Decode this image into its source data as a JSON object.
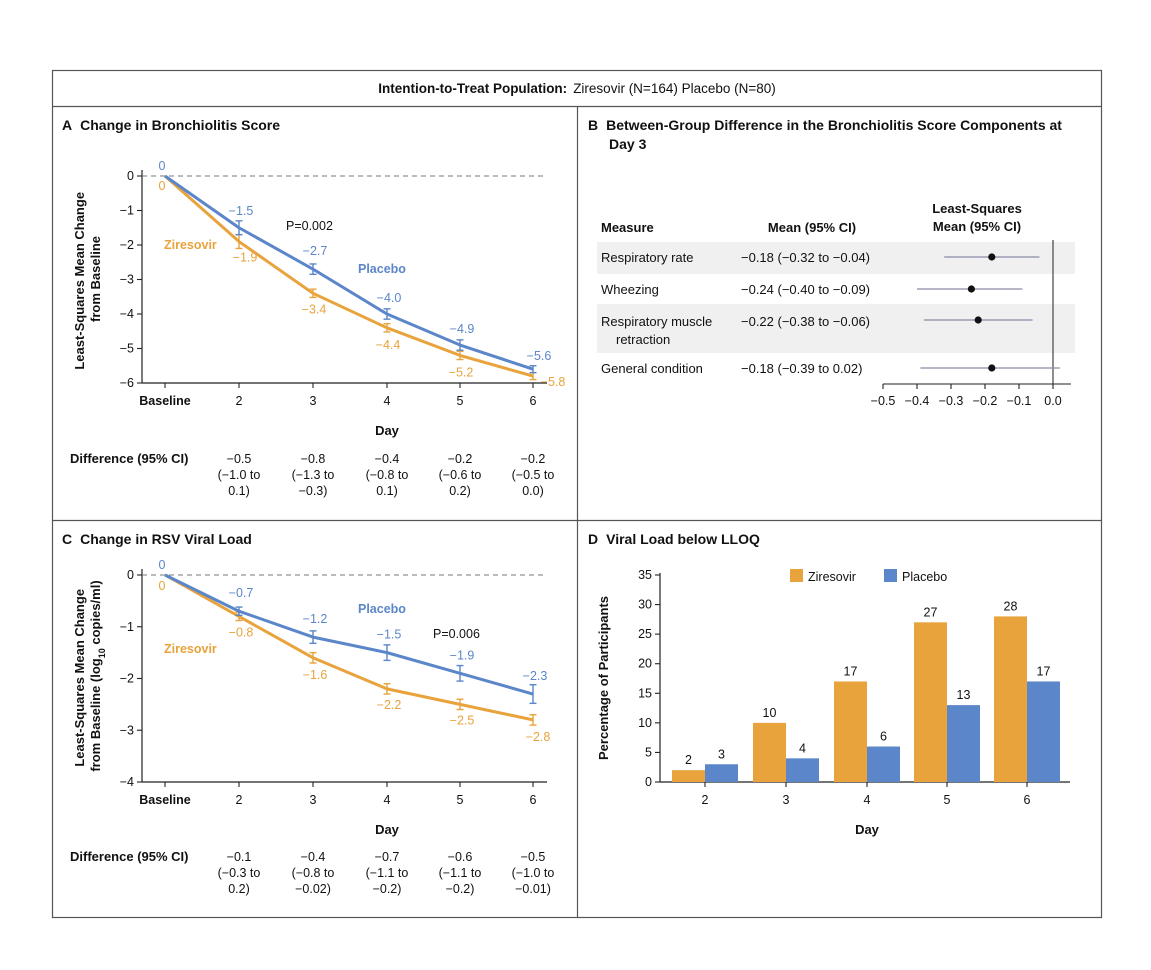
{
  "header": {
    "prefix": "Intention-to-Treat Population:",
    "groups": "Ziresovir (N=164)  Placebo (N=80)"
  },
  "colors": {
    "ziresovir": "#E8A33C",
    "placebo": "#5B86C9",
    "grid": "#888888",
    "row_shade": "#F0F0F0"
  },
  "chart_data": [
    {
      "panel": "A",
      "type": "line",
      "title": "Change in Bronchiolitis Score",
      "ylabel": "Least-Squares Mean Change from Baseline",
      "xlabel": "Day",
      "categories": [
        "Baseline",
        "2",
        "3",
        "4",
        "5",
        "6"
      ],
      "ylim": [
        -6,
        0
      ],
      "yticks": [
        "0",
        "−1",
        "−2",
        "−3",
        "−4",
        "−5",
        "−6"
      ],
      "series": [
        {
          "name": "Ziresovir",
          "values": [
            0,
            -1.9,
            -3.4,
            -4.4,
            -5.2,
            -5.8
          ],
          "errors": [
            0,
            0.2,
            0.12,
            0.12,
            0.12,
            0.1
          ],
          "labels": [
            "0",
            "−1.9",
            "−3.4",
            "−4.4",
            "−5.2",
            "−5.8"
          ]
        },
        {
          "name": "Placebo",
          "values": [
            0,
            -1.5,
            -2.7,
            -4.0,
            -4.9,
            -5.6
          ],
          "errors": [
            0,
            0.2,
            0.15,
            0.15,
            0.15,
            0.1
          ],
          "labels": [
            "0",
            "−1.5",
            "−2.7",
            "−4.0",
            "−4.9",
            "−5.6"
          ]
        }
      ],
      "annotation": "P=0.002",
      "difference_label": "Difference (95% CI)",
      "differences": [
        [
          "−0.5",
          "(−1.0 to",
          "0.1)"
        ],
        [
          "−0.8",
          "(−1.3 to",
          "−0.3)"
        ],
        [
          "−0.4",
          "(−0.8 to",
          "0.1)"
        ],
        [
          "−0.2",
          "(−0.6 to",
          "0.2)"
        ],
        [
          "−0.2",
          "(−0.5 to",
          "0.0)"
        ]
      ]
    },
    {
      "panel": "B",
      "type": "forest",
      "title_line1": "Between-Group Difference in the Bronchiolitis Score Components at",
      "title_line2": "Day 3",
      "col_measure": "Measure",
      "col_mean": "Mean (95% CI)",
      "col_plot_line1": "Least-Squares",
      "col_plot_line2": "Mean (95% CI)",
      "xlim": [
        -0.5,
        0.0
      ],
      "xticks": [
        "−0.5",
        "−0.4",
        "−0.3",
        "−0.2",
        "−0.1",
        "0.0"
      ],
      "rows": [
        {
          "measure": [
            "Respiratory rate"
          ],
          "mean_ci": "−0.18 (−0.32 to −0.04)",
          "mean": -0.18,
          "lo": -0.32,
          "hi": -0.04
        },
        {
          "measure": [
            "Wheezing"
          ],
          "mean_ci": "−0.24 (−0.40 to −0.09)",
          "mean": -0.24,
          "lo": -0.4,
          "hi": -0.09
        },
        {
          "measure": [
            "Respiratory muscle",
            "retraction"
          ],
          "mean_ci": "−0.22 (−0.38 to −0.06)",
          "mean": -0.22,
          "lo": -0.38,
          "hi": -0.06
        },
        {
          "measure": [
            "General condition"
          ],
          "mean_ci": "−0.18 (−0.39 to 0.02)",
          "mean": -0.18,
          "lo": -0.39,
          "hi": 0.02
        }
      ]
    },
    {
      "panel": "C",
      "type": "line",
      "title": "Change in RSV Viral Load",
      "ylabel_line1": "Least-Squares Mean Change",
      "ylabel_line2_pre": "from Baseline (log",
      "ylabel_line2_sub": "10",
      "ylabel_line2_post": " copies/ml)",
      "xlabel": "Day",
      "categories": [
        "Baseline",
        "2",
        "3",
        "4",
        "5",
        "6"
      ],
      "ylim": [
        -4,
        0
      ],
      "yticks": [
        "0",
        "−1",
        "−2",
        "−3",
        "−4"
      ],
      "series": [
        {
          "name": "Ziresovir",
          "values": [
            0,
            -0.8,
            -1.6,
            -2.2,
            -2.5,
            -2.8
          ],
          "errors": [
            0,
            0.08,
            0.1,
            0.1,
            0.1,
            0.1
          ],
          "labels": [
            "0",
            "−0.8",
            "−1.6",
            "−2.2",
            "−2.5",
            "−2.8"
          ]
        },
        {
          "name": "Placebo",
          "values": [
            0,
            -0.7,
            -1.2,
            -1.5,
            -1.9,
            -2.3
          ],
          "errors": [
            0,
            0.08,
            0.12,
            0.15,
            0.15,
            0.18
          ],
          "labels": [
            "0",
            "−0.7",
            "−1.2",
            "−1.5",
            "−1.9",
            "−2.3"
          ]
        }
      ],
      "annotation": "P=0.006",
      "difference_label": "Difference (95% CI)",
      "differences": [
        [
          "−0.1",
          "(−0.3 to",
          "0.2)"
        ],
        [
          "−0.4",
          "(−0.8 to",
          "−0.02)"
        ],
        [
          "−0.7",
          "(−1.1 to",
          "−0.2)"
        ],
        [
          "−0.6",
          "(−1.1 to",
          "−0.2)"
        ],
        [
          "−0.5",
          "(−1.0 to",
          "−0.01)"
        ]
      ]
    },
    {
      "panel": "D",
      "type": "bar",
      "title": "Viral Load below LLOQ",
      "ylabel": "Percentage of Participants",
      "xlabel": "Day",
      "categories": [
        "2",
        "3",
        "4",
        "5",
        "6"
      ],
      "ylim": [
        0,
        35
      ],
      "yticks": [
        "0",
        "5",
        "10",
        "15",
        "20",
        "25",
        "30",
        "35"
      ],
      "legend": "top",
      "series": [
        {
          "name": "Ziresovir",
          "values": [
            2,
            10,
            17,
            27,
            28
          ]
        },
        {
          "name": "Placebo",
          "values": [
            3,
            4,
            6,
            13,
            17
          ]
        }
      ]
    }
  ]
}
